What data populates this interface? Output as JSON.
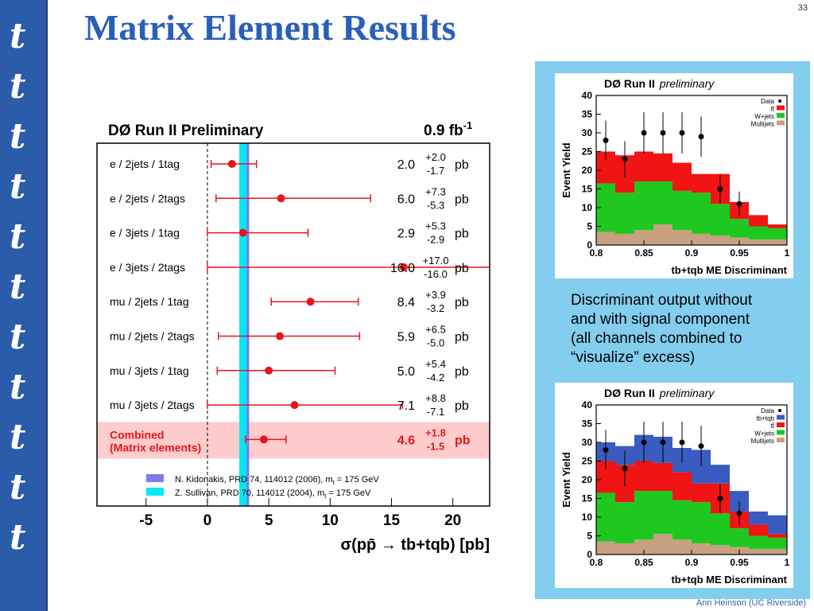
{
  "slide": {
    "title": "Matrix Element Results",
    "page_number": "33",
    "footer": "Ann Heinson   (UC Riverside)",
    "sidebar_glyph": "t",
    "caption_lines": [
      "Discriminant output without",
      "and with signal component",
      "(all channels combined to",
      "“visualize” excess)"
    ]
  },
  "chart_data": [
    {
      "type": "errorbar",
      "title": "DØ Run II Preliminary",
      "luminosity": "0.9 fb",
      "luminosity_exp": "-1",
      "xlabel": "σ(pp̄ → tb+tqb) [pb]",
      "xlim": [
        -9,
        23
      ],
      "xticks": [
        -5,
        0,
        5,
        10,
        15,
        20
      ],
      "unit": "pb",
      "channels": [
        {
          "label": "e / 2jets / 1tag",
          "value": 2.0,
          "plus": 2.0,
          "minus": 1.7,
          "value_text": "2.0",
          "plus_text": "+2.0",
          "minus_text": "-1.7"
        },
        {
          "label": "e / 2jets / 2tags",
          "value": 6.0,
          "plus": 7.3,
          "minus": 5.3,
          "value_text": "6.0",
          "plus_text": "+7.3",
          "minus_text": "-5.3"
        },
        {
          "label": "e / 3jets / 1tag",
          "value": 2.9,
          "plus": 5.3,
          "minus": 2.9,
          "value_text": "2.9",
          "plus_text": "+5.3",
          "minus_text": "-2.9"
        },
        {
          "label": "e / 3jets / 2tags",
          "value": 16.0,
          "plus": 17.0,
          "minus": 16.0,
          "value_text": "16.0",
          "plus_text": "+17.0",
          "minus_text": "-16.0"
        },
        {
          "label": "mu / 2jets / 1tag",
          "value": 8.4,
          "plus": 3.9,
          "minus": 3.2,
          "value_text": "8.4",
          "plus_text": "+3.9",
          "minus_text": "-3.2"
        },
        {
          "label": "mu / 2jets / 2tags",
          "value": 5.9,
          "plus": 6.5,
          "minus": 5.0,
          "value_text": "5.9",
          "plus_text": "+6.5",
          "minus_text": "-5.0"
        },
        {
          "label": "mu / 3jets / 1tag",
          "value": 5.0,
          "plus": 5.4,
          "minus": 4.2,
          "value_text": "5.0",
          "plus_text": "+5.4",
          "minus_text": "-4.2"
        },
        {
          "label": "mu / 3jets / 2tags",
          "value": 7.1,
          "plus": 8.8,
          "minus": 7.1,
          "value_text": "7.1",
          "plus_text": "+8.8",
          "minus_text": "-7.1"
        }
      ],
      "combined": {
        "label_lines": [
          "Combined",
          "(Matrix elements)"
        ],
        "value": 4.6,
        "plus": 1.8,
        "minus": 1.5,
        "value_text": "4.6",
        "plus_text": "+1.8",
        "minus_text": "-1.5"
      },
      "theory_bands": [
        {
          "text": "N. Kidonakis, PRD 74, 114012 (2006), m",
          "sub": "t",
          "after": " = 175 GeV",
          "low": 3.1,
          "high": 3.4,
          "color": "#7b7bf0"
        },
        {
          "text": "Z. Sullivan, PRD 70, 114012 (2004), m",
          "sub": "t",
          "after": " = 175 GeV",
          "low": 2.6,
          "high": 3.2,
          "color": "#00e8f4"
        }
      ],
      "colors": {
        "marker": "#e8141c",
        "combined_band": "#ffcccc",
        "combined_text": "#e8141c",
        "dashed_zero": "#000000"
      }
    },
    {
      "type": "stacked-histogram",
      "title": "DØ Run II",
      "title_italic": "preliminary",
      "xlabel": "tb+tqb ME Discriminant",
      "ylabel": "Event Yield",
      "xlim": [
        0.8,
        1.0
      ],
      "ylim": [
        0,
        40
      ],
      "xticks": [
        "0.8",
        "0.85",
        "0.9",
        "0.95",
        "1"
      ],
      "yticks": [
        0,
        5,
        10,
        15,
        20,
        25,
        30,
        35,
        40
      ],
      "bin_edges": [
        0.8,
        0.82,
        0.84,
        0.86,
        0.88,
        0.9,
        0.92,
        0.94,
        0.96,
        0.98,
        1.0
      ],
      "series": [
        {
          "name": "Multijets",
          "color": "#c8a080",
          "values": [
            3.5,
            3.0,
            4.0,
            5.5,
            4.0,
            3.0,
            2.5,
            2.0,
            1.5,
            1.5
          ]
        },
        {
          "name": "W+jets",
          "color": "#1ec81e",
          "values": [
            13.0,
            11.0,
            13.0,
            11.5,
            10.5,
            11.0,
            8.5,
            5.0,
            3.5,
            3.0
          ]
        },
        {
          "name": "tt̄",
          "color": "#f01414",
          "values": [
            8.5,
            10.0,
            8.0,
            7.5,
            7.5,
            5.0,
            8.0,
            4.5,
            3.0,
            1.0
          ]
        }
      ],
      "data": {
        "name": "Data",
        "points": [
          [
            0.81,
            28,
            5.3
          ],
          [
            0.83,
            23,
            4.8
          ],
          [
            0.85,
            30,
            5.5
          ],
          [
            0.87,
            30,
            5.5
          ],
          [
            0.89,
            30,
            5.5
          ],
          [
            0.91,
            29,
            5.4
          ],
          [
            0.93,
            15,
            3.9
          ],
          [
            0.95,
            11,
            3.3
          ]
        ]
      },
      "legend": [
        "Data",
        "tt̄",
        "W+jets",
        "Multijets"
      ]
    },
    {
      "type": "stacked-histogram",
      "title": "DØ Run II",
      "title_italic": "preliminary",
      "xlabel": "tb+tqb ME Discriminant",
      "ylabel": "Event Yield",
      "xlim": [
        0.8,
        1.0
      ],
      "ylim": [
        0,
        40
      ],
      "xticks": [
        "0.8",
        "0.85",
        "0.9",
        "0.95",
        "1"
      ],
      "yticks": [
        0,
        5,
        10,
        15,
        20,
        25,
        30,
        35,
        40
      ],
      "bin_edges": [
        0.8,
        0.82,
        0.84,
        0.86,
        0.88,
        0.9,
        0.92,
        0.94,
        0.96,
        0.98,
        1.0
      ],
      "series": [
        {
          "name": "Multijets",
          "color": "#c8a080",
          "values": [
            3.5,
            3.0,
            4.0,
            5.5,
            4.0,
            3.0,
            2.5,
            2.0,
            1.5,
            1.5
          ]
        },
        {
          "name": "W+jets",
          "color": "#1ec81e",
          "values": [
            13.0,
            11.0,
            13.0,
            11.5,
            10.5,
            11.0,
            8.5,
            5.0,
            3.5,
            3.0
          ]
        },
        {
          "name": "tt̄",
          "color": "#f01414",
          "values": [
            8.5,
            10.0,
            8.0,
            7.5,
            7.5,
            5.0,
            8.0,
            4.5,
            3.0,
            1.0
          ]
        },
        {
          "name": "tb+tqb",
          "color": "#3a5cc0",
          "values": [
            5.0,
            5.0,
            7.0,
            7.0,
            6.5,
            9.0,
            5.0,
            5.5,
            3.5,
            5.0
          ]
        }
      ],
      "data": {
        "name": "Data",
        "points": [
          [
            0.81,
            28,
            5.3
          ],
          [
            0.83,
            23,
            4.8
          ],
          [
            0.85,
            30,
            5.5
          ],
          [
            0.87,
            30,
            5.5
          ],
          [
            0.89,
            30,
            5.5
          ],
          [
            0.91,
            29,
            5.4
          ],
          [
            0.93,
            15,
            3.9
          ],
          [
            0.95,
            11,
            3.3
          ]
        ]
      },
      "legend": [
        "Data",
        "tb+tqb",
        "tt̄",
        "W+jets",
        "Multijets"
      ]
    }
  ]
}
